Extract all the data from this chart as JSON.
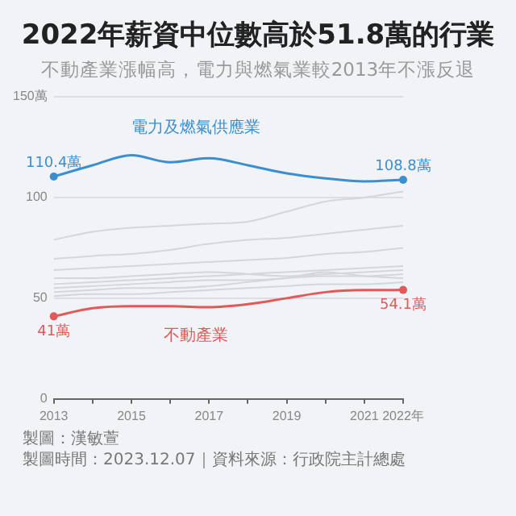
{
  "chart_data": {
    "type": "line",
    "title": "2022年薪資中位數高於51.8萬的行業",
    "subtitle": "不動產業漲幅高，電力與燃氣業較2013年不漲反退",
    "x": [
      2013,
      2014,
      2015,
      2016,
      2017,
      2018,
      2019,
      2020,
      2021,
      2022
    ],
    "xlim": [
      2013,
      2022
    ],
    "xticks": [
      2013,
      {
        "value": 2014,
        "label": null
      },
      2015,
      {
        "value": 2016,
        "label": null
      },
      2017,
      {
        "value": 2018,
        "label": null
      },
      2019,
      {
        "value": 2020,
        "label": null
      },
      2021,
      {
        "value": 2022,
        "label": "2022年"
      }
    ],
    "ylim": [
      0,
      150
    ],
    "yticks": [
      0,
      50,
      100,
      {
        "value": 150,
        "label": "150萬"
      }
    ],
    "grid": "y",
    "legend": false,
    "series": [
      {
        "color": "#d4d6da",
        "values": [
          79,
          83,
          85,
          86,
          87,
          88,
          93,
          98,
          100,
          103
        ]
      },
      {
        "color": "#d4d6da",
        "values": [
          69.5,
          71,
          72,
          74,
          77,
          79,
          80,
          82,
          84,
          86
        ]
      },
      {
        "color": "#d4d6da",
        "values": [
          64,
          65,
          66,
          67,
          68,
          69,
          70,
          72,
          73,
          75
        ]
      },
      {
        "color": "#d4d6da",
        "values": [
          57,
          58,
          59,
          60,
          61,
          62,
          63,
          64,
          65,
          66
        ]
      },
      {
        "color": "#d4d6da",
        "values": [
          60,
          60,
          61,
          62,
          63,
          62,
          61,
          62,
          63,
          64
        ]
      },
      {
        "color": "#d4d6da",
        "values": [
          55,
          56,
          57,
          58,
          59,
          59,
          60,
          61,
          61,
          62
        ]
      },
      {
        "color": "#d4d6da",
        "values": [
          53,
          54,
          55,
          55,
          56,
          58,
          60,
          63,
          61,
          60
        ]
      },
      {
        "color": "#d4d6da",
        "values": [
          51,
          52,
          52,
          53,
          54,
          55,
          56,
          57,
          57,
          58
        ]
      },
      {
        "name": "電力及燃氣供應業",
        "color": "#3a8fd0",
        "values": [
          110.4,
          116,
          121,
          117.5,
          119.5,
          116,
          112,
          109.5,
          108,
          108.8
        ],
        "value_labels": [
          "110.4萬",
          null,
          null,
          null,
          null,
          null,
          null,
          null,
          null,
          "108.8萬"
        ]
      },
      {
        "name": "不動產業",
        "color": "#e05a5a",
        "values": [
          41,
          45,
          46,
          46,
          45.5,
          47,
          50,
          53,
          54,
          54.1
        ],
        "value_labels": [
          "41萬",
          null,
          null,
          null,
          null,
          null,
          null,
          null,
          null,
          "54.1萬"
        ]
      }
    ],
    "annotations": [
      "製圖：漢敏萱",
      "製圖時間：2023.12.07｜資料來源：行政院主計總處"
    ]
  }
}
